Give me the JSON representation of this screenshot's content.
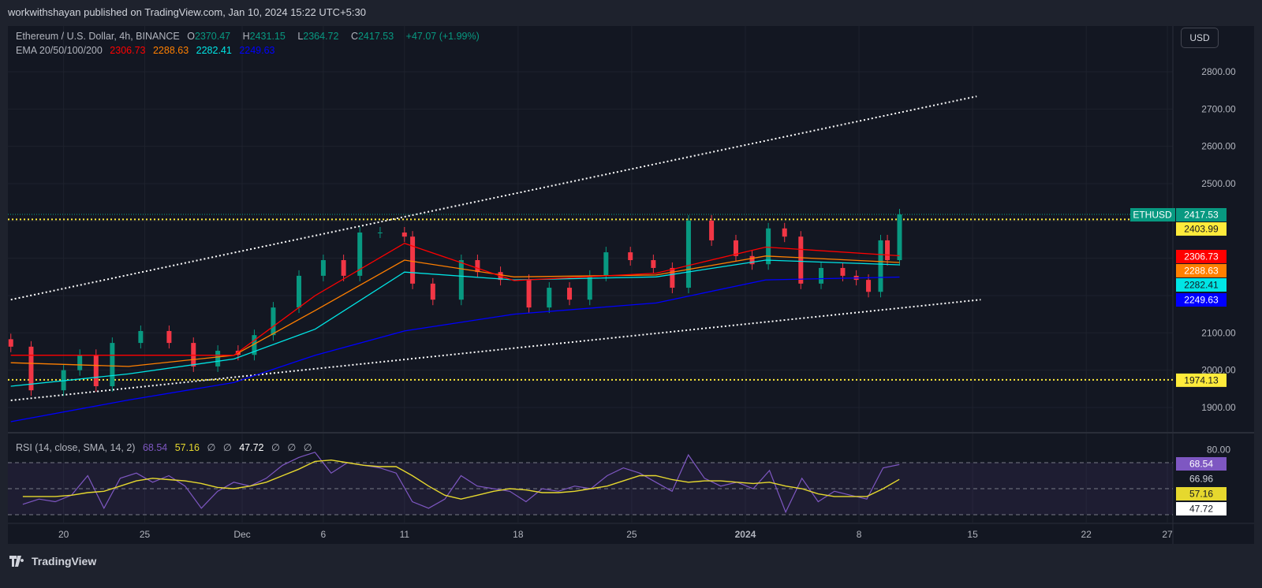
{
  "publish_line": "workwithshayan published on TradingView.com, Jan 10, 2024 15:22 UTC+5:30",
  "currency_button": "USD",
  "footer_brand": "TradingView",
  "legend": {
    "symbol": "Ethereum / U.S. Dollar, 4h, BINANCE",
    "o_label": "O",
    "o": "2370.47",
    "h_label": "H",
    "h": "2431.15",
    "l_label": "L",
    "l": "2364.72",
    "c_label": "C",
    "c": "2417.53",
    "change": "+47.07 (+1.99%)",
    "ema_label": "EMA 20/50/100/200",
    "ema20": "2306.73",
    "ema50": "2288.63",
    "ema100": "2282.41",
    "ema200": "2249.63",
    "rsi_label": "RSI (14, close, SMA, 14, 2)",
    "rsi": "68.54",
    "rsi_sma": "57.16",
    "rsi_null1": "∅",
    "rsi_null2": "∅",
    "rsi_third": "47.72",
    "rsi_null3": "∅",
    "rsi_null4": "∅",
    "rsi_null5": "∅"
  },
  "colors": {
    "up": "#089981",
    "down": "#f23645",
    "ema20": "#ff0000",
    "ema50": "#ff7f00",
    "ema100": "#00e5e5",
    "ema200": "#0000ff",
    "rsi": "#7e57c2",
    "rsi_sma": "#e6d82e",
    "level": "#ffeb3b",
    "trend": "#ffffff"
  },
  "chart_data": [
    {
      "type": "candlestick",
      "title": "Ethereum / U.S. Dollar, 4h, BINANCE",
      "x_ticks": [
        "20",
        "25",
        "Dec",
        "6",
        "11",
        "18",
        "25",
        "2024",
        "8",
        "15",
        "22",
        "27"
      ],
      "x_tick_dates": [
        "2023-11-20",
        "2023-11-25",
        "2023-12-01",
        "2023-12-06",
        "2023-12-11",
        "2023-12-18",
        "2023-12-25",
        "2024-01-01",
        "2024-01-08",
        "2024-01-15",
        "2024-01-22",
        "2024-01-27"
      ],
      "y_ticks": [
        1900,
        2000,
        2100,
        2200,
        2300,
        2400,
        2500,
        2600,
        2700,
        2800
      ],
      "ylim": [
        1860,
        2900
      ],
      "y_axis_visible_labels": [
        "1900.00",
        "2000.00",
        "2100.00",
        "2500.00",
        "2600.00",
        "2700.00",
        "2800.00"
      ],
      "grid": true,
      "price_points": {
        "dates": [
          "2023-11-16T18:00",
          "2023-11-18T00:00",
          "2023-11-20T00:00",
          "2023-11-21T00:00",
          "2023-11-22T00:00",
          "2023-11-23T00:00",
          "2023-11-24T18:00",
          "2023-11-26T12:00",
          "2023-11-28T00:00",
          "2023-11-29T12:00",
          "2023-11-30T18:00",
          "2023-12-01T18:00",
          "2023-12-02T22:00",
          "2023-12-04T12:00",
          "2023-12-06T00:00",
          "2023-12-07T06:00",
          "2023-12-08T06:00",
          "2023-12-09T12:00",
          "2023-12-11T00:00",
          "2023-12-11T12:00",
          "2023-12-12T18:00",
          "2023-12-14T12:00",
          "2023-12-15T12:00",
          "2023-12-16T22:00",
          "2023-12-18T16:00",
          "2023-12-19T22:00",
          "2023-12-21T04:00",
          "2023-12-22T10:00",
          "2023-12-23T10:00",
          "2023-12-24T22:00",
          "2023-12-26T08:00",
          "2023-12-27T12:00",
          "2023-12-28T12:00",
          "2023-12-29T22:00",
          "2023-12-31T10:00",
          "2024-01-01T10:00",
          "2024-01-02T10:00",
          "2024-01-03T10:00",
          "2024-01-04T10:00",
          "2024-01-05T16:00",
          "2024-01-07T00:00",
          "2024-01-07T20:00",
          "2024-01-08T14:00",
          "2024-01-09T08:00",
          "2024-01-09T18:00",
          "2024-01-10T12:00"
        ],
        "close": [
          2063,
          1946,
          2000,
          2041,
          1957,
          2073,
          2105,
          2073,
          2010,
          2052,
          2041,
          2094,
          2168,
          2253,
          2295,
          2253,
          2369,
          2369,
          2358,
          2232,
          2189,
          2295,
          2263,
          2242,
          2168,
          2221,
          2189,
          2253,
          2316,
          2295,
          2274,
          2221,
          2401,
          2348,
          2306,
          2284,
          2380,
          2358,
          2232,
          2274,
          2253,
          2242,
          2210,
          2348,
          2295,
          2417.53
        ]
      },
      "ema": {
        "dates": [
          "2023-11-16T18:00",
          "2023-11-24T00:00",
          "2023-11-30T12:00",
          "2023-12-05T12:00",
          "2023-12-11T00:00",
          "2023-12-17T18:00",
          "2023-12-26T12:00",
          "2024-01-02T06:00",
          "2024-01-10T12:00"
        ],
        "ema20": [
          2040,
          2040,
          2040,
          2200,
          2340,
          2240,
          2260,
          2330,
          2306.73
        ],
        "ema50": [
          2020,
          2010,
          2040,
          2160,
          2295,
          2250,
          2255,
          2306,
          2288.63
        ],
        "ema100": [
          1957,
          1990,
          2030,
          2110,
          2263,
          2242,
          2250,
          2295,
          2282.41
        ],
        "ema200": [
          1862,
          1920,
          1967,
          2040,
          2105,
          2150,
          2180,
          2242,
          2249.63
        ]
      },
      "levels": [
        2403.99,
        1974.13
      ],
      "trendlines": [
        {
          "from": [
            "2023-11-16T18:00",
            2189
          ],
          "to": [
            "2024-01-15T06:00",
            2734
          ]
        },
        {
          "from": [
            "2023-11-16T18:00",
            1919
          ],
          "to": [
            "2024-01-15T12:00",
            2189
          ]
        }
      ],
      "price_labels": [
        {
          "text": "ETHUSD",
          "value": "2417.53",
          "color": "#089981"
        },
        {
          "value": "2403.99",
          "color": "#ffeb3b"
        },
        {
          "value": "2306.73",
          "color": "#ff0000"
        },
        {
          "value": "2288.63",
          "color": "#ff7f00"
        },
        {
          "value": "2282.41",
          "color": "#00e5e5"
        },
        {
          "value": "2249.63",
          "color": "#0000ff"
        },
        {
          "value": "1974.13",
          "color": "#ffeb3b"
        }
      ]
    },
    {
      "type": "line",
      "title": "RSI (14, close, SMA, 14, 2)",
      "ylim": [
        20,
        85
      ],
      "bands": [
        70,
        50,
        30
      ],
      "y_tick_label": "80.00",
      "dates": [
        "2023-11-17",
        "2023-11-18",
        "2023-11-19",
        "2023-11-20",
        "2023-11-21",
        "2023-11-22",
        "2023-11-23",
        "2023-11-24",
        "2023-11-25",
        "2023-11-26",
        "2023-11-27",
        "2023-11-28",
        "2023-11-29",
        "2023-11-30",
        "2023-12-01",
        "2023-12-02",
        "2023-12-03",
        "2023-12-04",
        "2023-12-05",
        "2023-12-06",
        "2023-12-07",
        "2023-12-08",
        "2023-12-09",
        "2023-12-10",
        "2023-12-11",
        "2023-12-12",
        "2023-12-13",
        "2023-12-14",
        "2023-12-15",
        "2023-12-16",
        "2023-12-17",
        "2023-12-18",
        "2023-12-19",
        "2023-12-20",
        "2023-12-21",
        "2023-12-22",
        "2023-12-23",
        "2023-12-24",
        "2023-12-25",
        "2023-12-26",
        "2023-12-27",
        "2023-12-28",
        "2023-12-29",
        "2023-12-30",
        "2023-12-31",
        "2024-01-01",
        "2024-01-02",
        "2024-01-03",
        "2024-01-04",
        "2024-01-05",
        "2024-01-06",
        "2024-01-07",
        "2024-01-08",
        "2024-01-09",
        "2024-01-10"
      ],
      "rsi": [
        38,
        42,
        40,
        45,
        60,
        35,
        58,
        62,
        55,
        60,
        52,
        35,
        48,
        55,
        52,
        58,
        68,
        74,
        78,
        62,
        70,
        68,
        66,
        62,
        40,
        35,
        42,
        60,
        52,
        50,
        48,
        40,
        50,
        48,
        52,
        50,
        60,
        66,
        62,
        55,
        48,
        76,
        58,
        52,
        55,
        50,
        64,
        32,
        58,
        40,
        48,
        45,
        42,
        66,
        68.54
      ],
      "rsi_sma": [
        44,
        44,
        44,
        45,
        47,
        48,
        52,
        56,
        58,
        57,
        56,
        54,
        51,
        50,
        52,
        55,
        60,
        65,
        71,
        72,
        70,
        68,
        67,
        67,
        60,
        52,
        45,
        42,
        45,
        48,
        50,
        49,
        47,
        47,
        48,
        50,
        52,
        56,
        60,
        60,
        57,
        55,
        56,
        56,
        55,
        54,
        55,
        52,
        50,
        46,
        44,
        44,
        44,
        50,
        57.16
      ],
      "price_labels": [
        "68.54",
        "66.96",
        "57.16",
        "47.72"
      ]
    }
  ]
}
